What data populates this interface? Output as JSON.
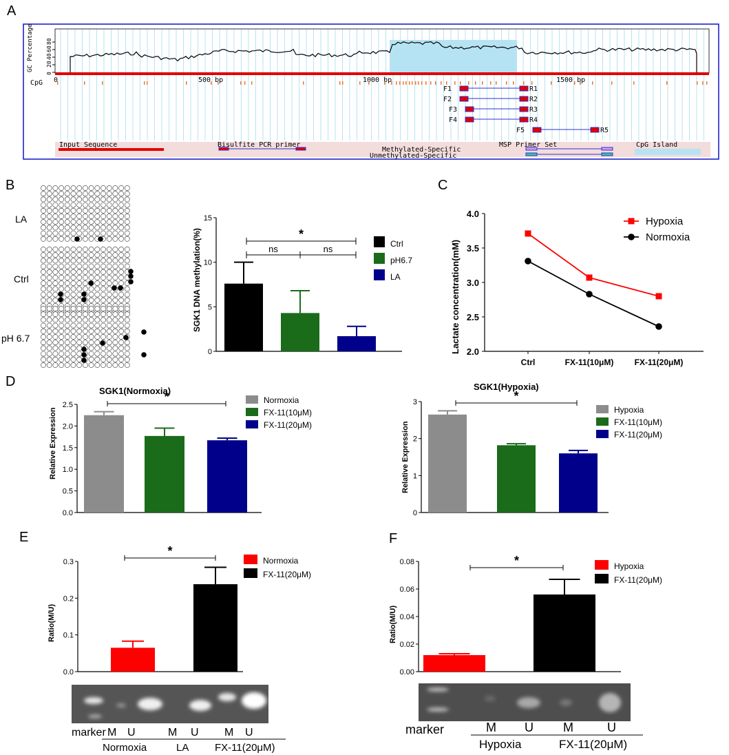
{
  "panel_labels": {
    "A": "A",
    "B": "B",
    "C": "C",
    "D": "D",
    "E": "E",
    "F": "F"
  },
  "colors": {
    "red": "#ff0000",
    "black": "#000000",
    "green": "#1a6b1a",
    "navy": "#00008b",
    "gray": "#8c8c8c",
    "lightblue": "#b6e3f3",
    "frame": "#1010c8"
  },
  "panel_a": {
    "gc_axis_label": "GC Percentage",
    "gc_ticks": [
      "0",
      "20",
      "40",
      "60",
      "80"
    ],
    "cpg_label": "CpG",
    "bp_ticks": [
      "0",
      "500  bp",
      "1000  bp",
      "1500  bp"
    ],
    "primers": [
      "F1",
      "R1",
      "F2",
      "R2",
      "F3",
      "R3",
      "F4",
      "R4",
      "F5",
      "R5"
    ],
    "legend": {
      "input_sequence": "Input Sequence",
      "bisulfite": "Bisulfite PCR primer",
      "msp": "MSP  Primer Set",
      "methylated": "Methylated-Specific",
      "unmethylated": "Unmethylated-Specific",
      "cpg_island": "CpG Island"
    }
  },
  "panel_b": {
    "group_labels": [
      "LA",
      "Ctrl",
      "pH 6.7"
    ],
    "chart_data": {
      "type": "bar",
      "categories": [
        "Ctrl",
        "pH6.7",
        "LA"
      ],
      "values": [
        7.6,
        4.3,
        1.7
      ],
      "errors": [
        2.4,
        2.5,
        1.1
      ],
      "ylabel": "SGK1 DNA methylation(%)",
      "ylim": [
        0,
        15
      ],
      "yticks": [
        "0",
        "5",
        "10",
        "15"
      ],
      "legend": [
        "Ctrl",
        "pH6.7",
        "LA"
      ],
      "significance": [
        "*",
        "ns",
        "ns"
      ]
    }
  },
  "panel_c": {
    "chart_data": {
      "type": "line",
      "categories": [
        "Ctrl",
        "FX-11(10μM)",
        "FX-11(20μM)"
      ],
      "series": [
        {
          "name": "Hypoxia",
          "values": [
            3.71,
            3.07,
            2.8
          ],
          "color": "#ff0000"
        },
        {
          "name": "Normoxia",
          "values": [
            3.31,
            2.83,
            2.36
          ],
          "color": "#000000"
        }
      ],
      "ylabel": "Lactate concentration(mM)",
      "ylim": [
        2.0,
        4.0
      ],
      "yticks": [
        "2.0",
        "2.5",
        "3.0",
        "3.5",
        "4.0"
      ]
    }
  },
  "panel_d1": {
    "chart_data": {
      "type": "bar",
      "title": "SGK1(Normoxia)",
      "categories": [
        "Normoxia",
        "FX-11(10μM)",
        "FX-11(20μM)"
      ],
      "values": [
        2.25,
        1.77,
        1.67
      ],
      "errors": [
        0.08,
        0.18,
        0.05
      ],
      "ylabel": "Relative Expression",
      "ylim": [
        0,
        2.5
      ],
      "yticks": [
        "0.0",
        "0.5",
        "1.0",
        "1.5",
        "2.0",
        "2.5"
      ],
      "legend": [
        "Normoxia",
        "FX-11(10μM)",
        "FX-11(20μM)"
      ],
      "significance": "*"
    }
  },
  "panel_d2": {
    "chart_data": {
      "type": "bar",
      "title": "SGK1(Hypoxia)",
      "categories": [
        "Hypoxia",
        "FX-11(10μM)",
        "FX-11(20μM)"
      ],
      "values": [
        2.65,
        1.82,
        1.6
      ],
      "errors": [
        0.1,
        0.04,
        0.08
      ],
      "ylabel": "Relative Expression",
      "ylim": [
        0,
        3
      ],
      "yticks": [
        "0",
        "1",
        "2",
        "3"
      ],
      "legend": [
        "Hypoxia",
        "FX-11(10μM)",
        "FX-11(20μM)"
      ],
      "significance": "*"
    }
  },
  "panel_e": {
    "chart_data": {
      "type": "bar",
      "categories": [
        "Normoxia",
        "FX-11(20μM)"
      ],
      "values": [
        0.065,
        0.238
      ],
      "errors": [
        0.018,
        0.046
      ],
      "ylabel": "Ratio(M/U)",
      "ylim": [
        0,
        0.3
      ],
      "yticks": [
        "0.0",
        "0.1",
        "0.2",
        "0.3"
      ],
      "legend": [
        "Normoxia",
        "FX-11(20μM)"
      ],
      "significance": "*"
    },
    "gel": {
      "lanes": [
        "marker",
        "M",
        "U",
        "M",
        "U",
        "M",
        "U"
      ],
      "groups": [
        "Normoxia",
        "LA",
        "FX-11(20μM)"
      ]
    }
  },
  "panel_f": {
    "chart_data": {
      "type": "bar",
      "categories": [
        "Hypoxia",
        "FX-11(20μM)"
      ],
      "values": [
        0.012,
        0.056
      ],
      "errors": [
        0.001,
        0.011
      ],
      "ylabel": "Ratio(M/U)",
      "ylim": [
        0,
        0.08
      ],
      "yticks": [
        "0.00",
        "0.02",
        "0.04",
        "0.06",
        "0.08"
      ],
      "legend": [
        "Hypoxia",
        "FX-11(20μM)"
      ],
      "significance": "*"
    },
    "gel": {
      "lanes": [
        "marker",
        "M",
        "U",
        "M",
        "U"
      ],
      "groups": [
        "Hypoxia",
        "FX-11(20μM)"
      ]
    }
  }
}
